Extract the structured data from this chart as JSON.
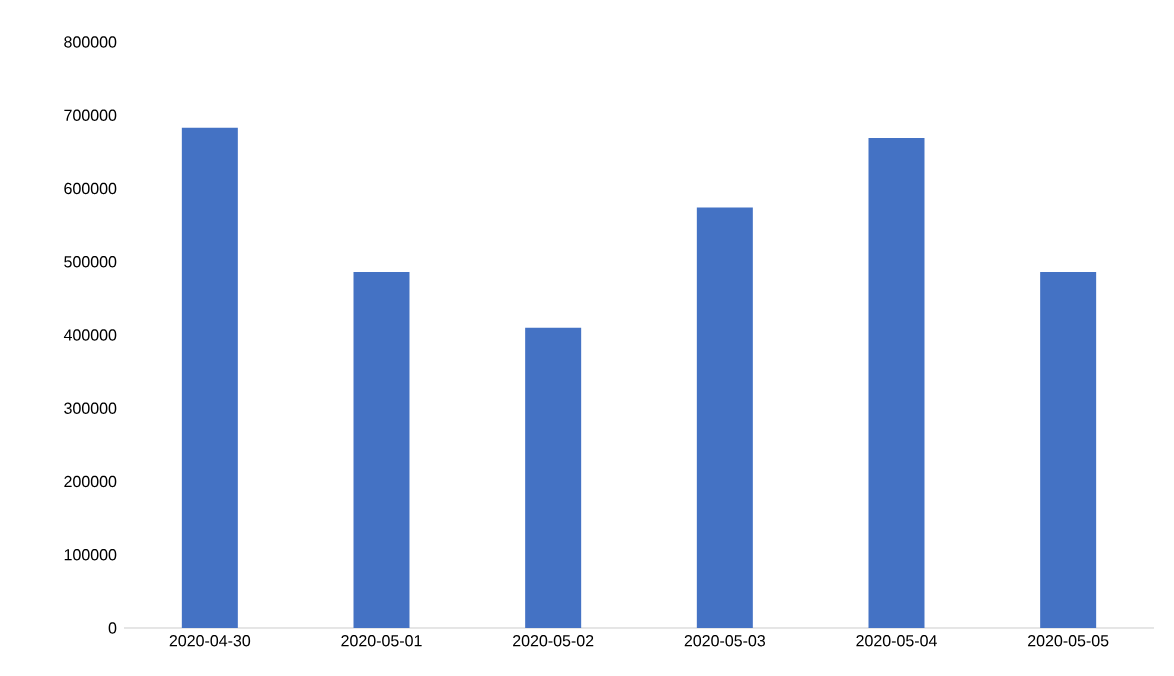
{
  "chart_data": {
    "type": "bar",
    "categories": [
      "2020-04-30",
      "2020-05-01",
      "2020-05-02",
      "2020-05-03",
      "2020-05-04",
      "2020-05-05"
    ],
    "values": [
      683000,
      486000,
      410000,
      574000,
      669000,
      486000
    ],
    "color": "#4472c4",
    "ylim": [
      0,
      800000
    ],
    "yticks": [
      0,
      100000,
      200000,
      300000,
      400000,
      500000,
      600000,
      700000,
      800000
    ]
  }
}
